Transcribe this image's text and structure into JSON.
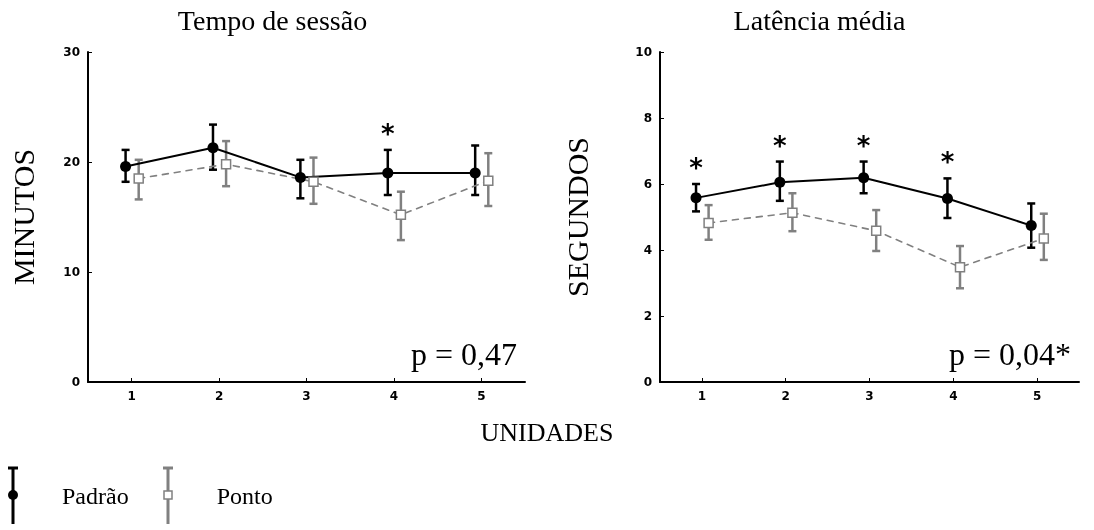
{
  "chart_data": [
    {
      "type": "line",
      "title": "Tempo de sessão",
      "ylabel": "MINUTOS",
      "xlabel": "UNIDADES",
      "xlim": [
        0.5,
        5.5
      ],
      "xticks": [
        1,
        2,
        3,
        4,
        5
      ],
      "ylim": [
        0,
        30
      ],
      "yticks": [
        0,
        10,
        20,
        30
      ],
      "grid": false,
      "legend": "bottom left",
      "series": [
        {
          "name": "Padrão",
          "color": "#000000",
          "marker": "circle",
          "line_style": "solid",
          "x": [
            0.93,
            1.93,
            2.93,
            3.93,
            4.93
          ],
          "values": [
            19.6,
            21.3,
            18.6,
            19.0,
            19.0
          ],
          "errors": [
            [
              18.2,
              21.1
            ],
            [
              19.3,
              23.4
            ],
            [
              16.7,
              20.2
            ],
            [
              17.0,
              21.1
            ],
            [
              17.0,
              21.5
            ]
          ]
        },
        {
          "name": "Ponto",
          "color": "#808080",
          "marker": "square",
          "line_style": "dashed",
          "x": [
            1.08,
            2.08,
            3.08,
            4.08,
            5.08
          ],
          "values": [
            18.5,
            19.8,
            18.2,
            15.2,
            18.3
          ],
          "errors": [
            [
              16.6,
              20.2
            ],
            [
              17.8,
              21.9
            ],
            [
              16.2,
              20.4
            ],
            [
              12.9,
              17.3
            ],
            [
              16.0,
              20.8
            ]
          ]
        }
      ],
      "annotations": [
        {
          "text": "*",
          "x": 3.93,
          "y": 19.0
        },
        "p = 0,47"
      ]
    },
    {
      "type": "line",
      "title": "Latência média",
      "ylabel": "SEGUNDOS",
      "xlim": [
        0.5,
        5.5
      ],
      "xticks": [
        1,
        2,
        3,
        4,
        5
      ],
      "ylim": [
        0,
        10
      ],
      "yticks": [
        0,
        2,
        4,
        6,
        8,
        10
      ],
      "grid": false,
      "series": [
        {
          "color": "#000000",
          "marker": "circle",
          "line_style": "solid",
          "x": [
            0.93,
            1.93,
            2.93,
            3.93,
            4.93
          ],
          "values": [
            5.58,
            6.05,
            6.19,
            5.56,
            4.74
          ],
          "errors": [
            [
              5.17,
              6.0
            ],
            [
              5.49,
              6.68
            ],
            [
              5.72,
              6.68
            ],
            [
              4.97,
              6.17
            ],
            [
              4.07,
              5.41
            ]
          ]
        },
        {
          "color": "#808080",
          "marker": "square",
          "line_style": "dashed",
          "x": [
            1.08,
            2.08,
            3.08,
            4.08,
            5.08
          ],
          "values": [
            4.82,
            5.13,
            4.58,
            3.48,
            4.35
          ],
          "errors": [
            [
              4.31,
              5.36
            ],
            [
              4.57,
              5.72
            ],
            [
              3.97,
              5.21
            ],
            [
              2.84,
              4.12
            ],
            [
              3.7,
              5.1
            ]
          ]
        }
      ],
      "annotations": [
        {
          "text": "*",
          "x": 0.93,
          "y": 5.58
        },
        {
          "text": "*",
          "x": 1.93,
          "y": 6.05
        },
        {
          "text": "*",
          "x": 2.93,
          "y": 6.19
        },
        {
          "text": "*",
          "x": 3.93,
          "y": 5.56
        },
        "p = 0,04*"
      ]
    }
  ]
}
